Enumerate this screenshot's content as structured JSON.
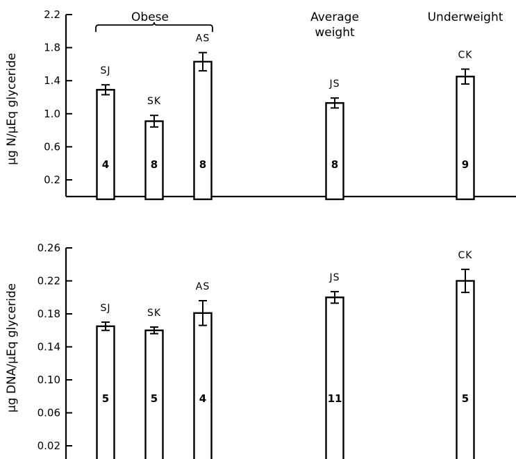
{
  "group_labels": {
    "obese": "Obese",
    "average_line1": "Average",
    "average_line2": "weight",
    "underweight": "Underweight"
  },
  "chart_data": [
    {
      "type": "bar",
      "ylabel": "µg N/µEq glyceride",
      "yticks": [
        0.2,
        0.6,
        1.0,
        1.4,
        1.8,
        2.2
      ],
      "ytick_labels": [
        "0.2",
        "0.6",
        "1.0",
        "1.4",
        "1.8",
        "2.2"
      ],
      "ylim": [
        0.0,
        2.2
      ],
      "categories": [
        "SJ",
        "SK",
        "AS",
        "JS",
        "CK"
      ],
      "groups": [
        "Obese",
        "Obese",
        "Obese",
        "Average weight",
        "Underweight"
      ],
      "values": [
        1.29,
        0.91,
        1.63,
        1.13,
        1.45
      ],
      "errors": [
        0.06,
        0.07,
        0.11,
        0.06,
        0.09
      ],
      "n": [
        "4",
        "8",
        "8",
        "8",
        "9"
      ]
    },
    {
      "type": "bar",
      "ylabel": "µg DNA/µEq glyceride",
      "yticks": [
        0.02,
        0.06,
        0.1,
        0.14,
        0.18,
        0.22,
        0.26
      ],
      "ytick_labels": [
        "0.02",
        "0.06",
        "0.10",
        "0.14",
        "0.18",
        "0.22",
        "0.26"
      ],
      "ylim": [
        0.0,
        0.26
      ],
      "categories": [
        "SJ",
        "SK",
        "AS",
        "JS",
        "CK"
      ],
      "groups": [
        "Obese",
        "Obese",
        "Obese",
        "Average weight",
        "Underweight"
      ],
      "values": [
        0.165,
        0.16,
        0.181,
        0.2,
        0.22
      ],
      "errors": [
        0.005,
        0.004,
        0.015,
        0.007,
        0.014
      ],
      "n": [
        "5",
        "5",
        "4",
        "11",
        "5"
      ]
    }
  ]
}
